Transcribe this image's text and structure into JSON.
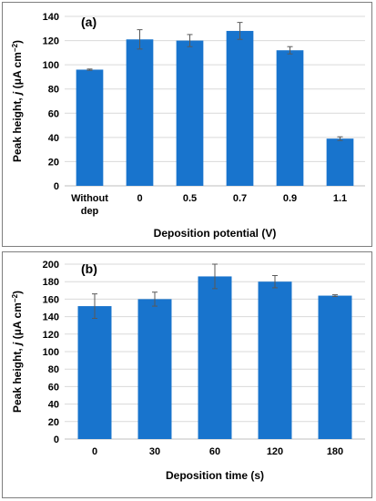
{
  "chart_data": [
    {
      "type": "bar",
      "panel_label": "(a)",
      "title": "",
      "xlabel": "Deposition potential (V)",
      "ylabel_main": "Peak height, ",
      "ylabel_symbol": "j",
      "ylabel_unit": " (μA cm",
      "ylabel_sup": "−2",
      "ylabel_close": ")",
      "categories": [
        [
          "Without",
          "dep"
        ],
        [
          "0"
        ],
        [
          "0.5"
        ],
        [
          "0.7"
        ],
        [
          "0.9"
        ],
        [
          "1.1"
        ]
      ],
      "values": [
        96,
        121,
        120,
        128,
        112,
        39
      ],
      "errors": [
        0.5,
        8,
        5,
        7,
        3,
        1.5
      ],
      "ylim": [
        0,
        140
      ],
      "yticks": [
        "0",
        "20",
        "40",
        "60",
        "80",
        "100",
        "120",
        "140"
      ],
      "grid": true,
      "bar_color": "#1874cd"
    },
    {
      "type": "bar",
      "panel_label": "(b)",
      "title": "",
      "xlabel": "Deposition time (s)",
      "ylabel_main": "Peak height, ",
      "ylabel_symbol": "j",
      "ylabel_unit": " (μA cm",
      "ylabel_sup": "−2",
      "ylabel_close": ")",
      "categories": [
        [
          "0"
        ],
        [
          "30"
        ],
        [
          "60"
        ],
        [
          "120"
        ],
        [
          "180"
        ]
      ],
      "values": [
        152,
        160,
        186,
        180,
        164
      ],
      "errors": [
        14,
        8,
        14,
        7,
        1
      ],
      "ylim": [
        0,
        200
      ],
      "yticks": [
        "0",
        "20",
        "40",
        "60",
        "80",
        "100",
        "120",
        "140",
        "160",
        "180",
        "200"
      ],
      "grid": true,
      "bar_color": "#1874cd"
    }
  ]
}
